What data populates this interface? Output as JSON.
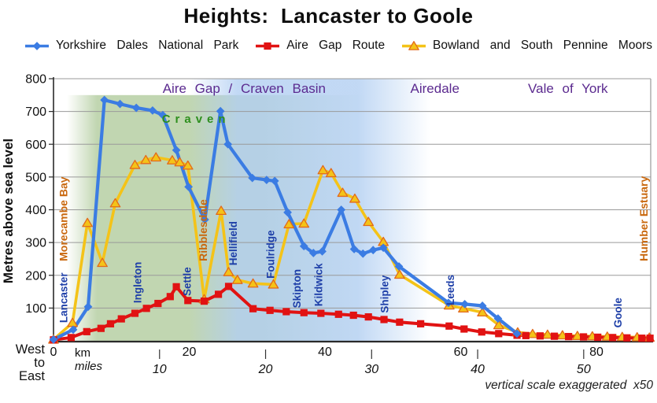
{
  "title": "Heights:  Lancaster to Goole",
  "legend": {
    "items": [
      {
        "label": "Yorkshire Dales National Park",
        "color": "#3b7ce3",
        "marker": "diamond"
      },
      {
        "label": "Aire Gap Route",
        "color": "#e11212",
        "marker": "square"
      },
      {
        "label": "Bowland and South Pennine Moors",
        "color": "#f4c318",
        "marker": "triangle",
        "marker_edge": "#e2691b"
      }
    ]
  },
  "chart_data": {
    "type": "line",
    "title": "Heights:  Lancaster to Goole",
    "ylabel": "Metres above sea level",
    "ylim": [
      0,
      800
    ],
    "y_ticks": [
      800,
      700,
      600,
      500,
      400,
      300,
      200,
      100
    ],
    "x_max_km": 88,
    "km_axis": {
      "label": "km",
      "ticks": [
        0,
        20,
        40,
        60,
        80
      ]
    },
    "mile_axis": {
      "label": "miles",
      "ticks": [
        10,
        20,
        30,
        40,
        50
      ],
      "km_per_mile": 1.5625
    },
    "direction_lines": [
      "West",
      "to",
      "East"
    ],
    "footnote": "vertical scale exaggerated  x50",
    "grid_color": "#9a9a9a",
    "axis_color": "#2a2a2a",
    "washes": [
      {
        "name": "craven-green-wash",
        "km": [
          2,
          46
        ],
        "top_m": 750,
        "color": "#a9c693",
        "opacity": 0.72,
        "fade": [
          0.1,
          0.66
        ]
      },
      {
        "name": "airedale-blue-wash",
        "km": [
          20,
          55.5
        ],
        "top_m": 800,
        "color": "#b2cff2",
        "opacity": 0.8,
        "fade": [
          0.2,
          0.7
        ]
      }
    ],
    "region_labels": [
      {
        "text": "Aire Gap / Craven Basin",
        "km": 28.1,
        "m": 757,
        "style": "purple"
      },
      {
        "text": "Craven",
        "km": 21.0,
        "m": 665,
        "style": "green"
      },
      {
        "text": "Airedale",
        "km": 56.2,
        "m": 757,
        "style": "purple"
      },
      {
        "text": "Vale of York",
        "km": 75.8,
        "m": 757,
        "style": "purple"
      }
    ],
    "place_labels": [
      {
        "text": "Lancaster",
        "km": 1.5,
        "m": 55
      },
      {
        "text": "Ingleton",
        "km": 12.4,
        "m": 115
      },
      {
        "text": "Settle",
        "km": 19.7,
        "m": 137
      },
      {
        "text": "Hellifield",
        "km": 26.5,
        "m": 230
      },
      {
        "text": "Foulridge",
        "km": 32.0,
        "m": 190
      },
      {
        "text": "Skipton",
        "km": 35.9,
        "m": 100
      },
      {
        "text": "Kildwick",
        "km": 39.1,
        "m": 105
      },
      {
        "text": "Shipley",
        "km": 48.8,
        "m": 85
      },
      {
        "text": "Leeds",
        "km": 58.5,
        "m": 108
      },
      {
        "text": "Goole",
        "km": 83.2,
        "m": 40
      }
    ],
    "coast_labels": [
      {
        "text": "Morecambe Bay",
        "km": 1.5,
        "m": 243
      },
      {
        "text": "Ribblesdale",
        "km": 22.1,
        "m": 243
      },
      {
        "text": "Humber Estuary",
        "km": 87.0,
        "m": 243
      }
    ],
    "series": [
      {
        "name": "Yorkshire Dales National Park",
        "color": "#3b7ce3",
        "marker": "diamond",
        "line_width": 4.2,
        "points": [
          [
            0,
            4
          ],
          [
            2.9,
            34
          ],
          [
            5.1,
            104
          ],
          [
            7.5,
            735
          ],
          [
            9.8,
            723
          ],
          [
            12.2,
            711
          ],
          [
            14.6,
            703
          ],
          [
            16.1,
            689
          ],
          [
            18.1,
            582
          ],
          [
            19.9,
            470
          ],
          [
            22.3,
            370
          ],
          [
            24.6,
            701
          ],
          [
            25.7,
            600
          ],
          [
            29.3,
            497
          ],
          [
            31.4,
            491
          ],
          [
            32.6,
            488
          ],
          [
            34.5,
            392
          ],
          [
            36.9,
            289
          ],
          [
            38.3,
            268
          ],
          [
            39.6,
            273
          ],
          [
            42.4,
            400
          ],
          [
            44.3,
            280
          ],
          [
            45.6,
            266
          ],
          [
            47.1,
            277
          ],
          [
            48.6,
            284
          ],
          [
            50.9,
            227
          ],
          [
            58.2,
            116
          ],
          [
            60.6,
            112
          ],
          [
            63.2,
            107
          ],
          [
            65.5,
            68
          ],
          [
            68.3,
            22
          ]
        ]
      },
      {
        "name": "Aire Gap Route",
        "color": "#e11212",
        "marker": "square",
        "line_width": 4,
        "points": [
          [
            0,
            3
          ],
          [
            2.6,
            10
          ],
          [
            4.9,
            28
          ],
          [
            7,
            38
          ],
          [
            8.4,
            52
          ],
          [
            10,
            67
          ],
          [
            12,
            84
          ],
          [
            13.7,
            99
          ],
          [
            15.4,
            114
          ],
          [
            17.2,
            135
          ],
          [
            18.1,
            165
          ],
          [
            19.8,
            123
          ],
          [
            22.2,
            121
          ],
          [
            24.3,
            142
          ],
          [
            25.8,
            166
          ],
          [
            29.4,
            98
          ],
          [
            31.9,
            93
          ],
          [
            34.3,
            89
          ],
          [
            36.9,
            86
          ],
          [
            39.4,
            84
          ],
          [
            42,
            81
          ],
          [
            44.2,
            78
          ],
          [
            46.4,
            73
          ],
          [
            48.7,
            65
          ],
          [
            51,
            57
          ],
          [
            54.1,
            52
          ],
          [
            58.3,
            45
          ],
          [
            60.5,
            36
          ],
          [
            63.1,
            27
          ],
          [
            65.6,
            22
          ],
          [
            68.3,
            17
          ],
          [
            69.6,
            16
          ],
          [
            71.7,
            15
          ],
          [
            73.8,
            14
          ],
          [
            75.9,
            13
          ],
          [
            78.1,
            12
          ],
          [
            80.2,
            11
          ],
          [
            82.4,
            10
          ],
          [
            84.5,
            9
          ],
          [
            86.7,
            8
          ],
          [
            87.9,
            8
          ]
        ]
      },
      {
        "name": "Bowland and South Pennine Moors",
        "color": "#f4c318",
        "marker": "triangle",
        "marker_edge": "#e2691b",
        "line_width": 3.6,
        "points": [
          [
            0,
            4
          ],
          [
            2.8,
            55
          ],
          [
            5,
            360
          ],
          [
            7.2,
            238
          ],
          [
            9.1,
            420
          ],
          [
            12,
            537
          ],
          [
            13.6,
            552
          ],
          [
            15.1,
            560
          ],
          [
            17.5,
            551
          ],
          [
            18.6,
            545
          ],
          [
            19.8,
            535
          ],
          [
            22.2,
            127
          ],
          [
            24.7,
            397
          ],
          [
            25.8,
            210
          ],
          [
            27.1,
            186
          ],
          [
            29.4,
            175
          ],
          [
            32.4,
            172
          ],
          [
            34.7,
            356
          ],
          [
            36.9,
            358
          ],
          [
            39.7,
            521
          ],
          [
            40.9,
            512
          ],
          [
            42.6,
            452
          ],
          [
            44.4,
            434
          ],
          [
            46.4,
            363
          ],
          [
            48.6,
            302
          ],
          [
            51,
            202
          ],
          [
            58.3,
            108
          ],
          [
            60.4,
            99
          ],
          [
            63.2,
            87
          ],
          [
            65.6,
            48
          ],
          [
            68.4,
            26
          ],
          [
            70.6,
            21
          ],
          [
            72.8,
            19
          ],
          [
            75,
            17
          ],
          [
            77.2,
            15
          ],
          [
            79.4,
            14
          ],
          [
            81.6,
            13
          ],
          [
            83.8,
            12
          ],
          [
            86,
            11
          ],
          [
            87.8,
            10
          ]
        ]
      }
    ]
  }
}
